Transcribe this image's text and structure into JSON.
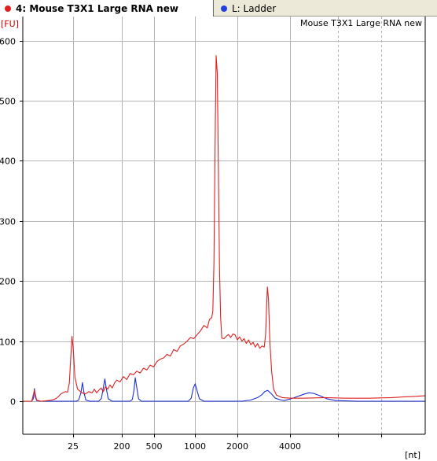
{
  "tabs": [
    {
      "label": "4: Mouse T3X1 Large RNA new",
      "dot_color": "#e02020",
      "active": true
    },
    {
      "label": "L: Ladder",
      "dot_color": "#2040e0",
      "active": false
    }
  ],
  "chart_data": {
    "type": "line",
    "title": "Mouse T3X1 Large RNA new",
    "ylabel": "[FU]",
    "xlabel": "[nt]",
    "x_tick_labels": [
      "25",
      "200",
      "500",
      "1000",
      "2000",
      "4000"
    ],
    "y_ticks": [
      0,
      100,
      200,
      300,
      400,
      500,
      600
    ],
    "ylim": [
      -55,
      640
    ],
    "grid": true,
    "series": [
      {
        "name": "Mouse T3X1 Large RNA new",
        "color": "#e02020",
        "points": [
          [
            20,
            0
          ],
          [
            24,
            0
          ],
          [
            25.2,
            18
          ],
          [
            26.2,
            2
          ],
          [
            28,
            0
          ],
          [
            30,
            0.5
          ],
          [
            31.5,
            1.2
          ],
          [
            33,
            2
          ],
          [
            34,
            3
          ],
          [
            35,
            5
          ],
          [
            36,
            8
          ],
          [
            37,
            12
          ],
          [
            38,
            14
          ],
          [
            39,
            16
          ],
          [
            40,
            15
          ],
          [
            40.8,
            30
          ],
          [
            41.4,
            70
          ],
          [
            42,
            108
          ],
          [
            42.6,
            85
          ],
          [
            43.3,
            40
          ],
          [
            44.5,
            20
          ],
          [
            46.5,
            14
          ],
          [
            48,
            12
          ],
          [
            49.5,
            16
          ],
          [
            51,
            14
          ],
          [
            52,
            20
          ],
          [
            53,
            14
          ],
          [
            54,
            18
          ],
          [
            55,
            22
          ],
          [
            56,
            16
          ],
          [
            57,
            24
          ],
          [
            58,
            20
          ],
          [
            59,
            27
          ],
          [
            60,
            22
          ],
          [
            61,
            30
          ],
          [
            62,
            35
          ],
          [
            63.5,
            32
          ],
          [
            65,
            41
          ],
          [
            66.5,
            36
          ],
          [
            68,
            46
          ],
          [
            69.5,
            44
          ],
          [
            71,
            50
          ],
          [
            72.5,
            47
          ],
          [
            74,
            55
          ],
          [
            75.5,
            52
          ],
          [
            77,
            60
          ],
          [
            78.5,
            57
          ],
          [
            80,
            66
          ],
          [
            81.5,
            70
          ],
          [
            83,
            72
          ],
          [
            84.5,
            78
          ],
          [
            86,
            75
          ],
          [
            87.5,
            86
          ],
          [
            89,
            83
          ],
          [
            90.5,
            92
          ],
          [
            92,
            95
          ],
          [
            93.5,
            100
          ],
          [
            95,
            106
          ],
          [
            96.5,
            104
          ],
          [
            98,
            111
          ],
          [
            99.5,
            117
          ],
          [
            101,
            126
          ],
          [
            102.5,
            122
          ],
          [
            103.5,
            136
          ],
          [
            104.5,
            139
          ],
          [
            105,
            150
          ],
          [
            105.5,
            230
          ],
          [
            106,
            420
          ],
          [
            106.5,
            575
          ],
          [
            107,
            545
          ],
          [
            107.5,
            380
          ],
          [
            108,
            220
          ],
          [
            108.5,
            140
          ],
          [
            109,
            105
          ],
          [
            110,
            104
          ],
          [
            111,
            108
          ],
          [
            112,
            111
          ],
          [
            113,
            106
          ],
          [
            114,
            112
          ],
          [
            115,
            110
          ],
          [
            116,
            102
          ],
          [
            117,
            107
          ],
          [
            118,
            100
          ],
          [
            119,
            104
          ],
          [
            120,
            96
          ],
          [
            121,
            102
          ],
          [
            122,
            94
          ],
          [
            123,
            98
          ],
          [
            124,
            90
          ],
          [
            125,
            96
          ],
          [
            126,
            88
          ],
          [
            127,
            92
          ],
          [
            128,
            90
          ],
          [
            128.6,
            110
          ],
          [
            129,
            150
          ],
          [
            129.4,
            190
          ],
          [
            129.9,
            170
          ],
          [
            130.5,
            100
          ],
          [
            131.3,
            50
          ],
          [
            132.2,
            20
          ],
          [
            133.5,
            10
          ],
          [
            136,
            6
          ],
          [
            140,
            5
          ],
          [
            145,
            5
          ],
          [
            155,
            6
          ],
          [
            165,
            5
          ],
          [
            175,
            5
          ],
          [
            185,
            6
          ],
          [
            190,
            7
          ],
          [
            195,
            8
          ],
          [
            200,
            9
          ]
        ]
      },
      {
        "name": "L: Ladder",
        "color": "#1a2ed6",
        "points": [
          [
            24,
            0
          ],
          [
            24.8,
            5
          ],
          [
            25.2,
            21
          ],
          [
            25.6,
            8
          ],
          [
            26.2,
            1
          ],
          [
            28,
            0
          ],
          [
            40,
            0
          ],
          [
            44,
            0
          ],
          [
            45,
            2
          ],
          [
            46,
            14
          ],
          [
            46.7,
            31
          ],
          [
            47.4,
            14
          ],
          [
            48.2,
            2
          ],
          [
            50,
            0
          ],
          [
            54,
            0
          ],
          [
            55.2,
            5
          ],
          [
            56,
            22
          ],
          [
            56.7,
            37
          ],
          [
            57.4,
            20
          ],
          [
            58.2,
            4
          ],
          [
            60,
            0
          ],
          [
            68,
            0
          ],
          [
            69,
            3
          ],
          [
            69.7,
            18
          ],
          [
            70.3,
            39
          ],
          [
            71,
            22
          ],
          [
            71.8,
            4
          ],
          [
            73,
            0
          ],
          [
            90,
            0
          ],
          [
            94,
            0
          ],
          [
            95.3,
            5
          ],
          [
            96.3,
            22
          ],
          [
            97.1,
            29
          ],
          [
            97.9,
            18
          ],
          [
            99,
            4
          ],
          [
            101,
            0
          ],
          [
            118,
            0
          ],
          [
            122,
            2
          ],
          [
            125,
            6
          ],
          [
            127,
            11
          ],
          [
            128.2,
            16
          ],
          [
            129.5,
            18
          ],
          [
            131,
            13
          ],
          [
            133,
            5
          ],
          [
            135.5,
            2
          ],
          [
            137,
            1
          ],
          [
            140,
            4
          ],
          [
            143,
            8
          ],
          [
            146,
            12
          ],
          [
            148,
            14
          ],
          [
            150,
            13
          ],
          [
            153,
            9
          ],
          [
            156,
            4
          ],
          [
            160,
            1
          ],
          [
            170,
            0
          ],
          [
            200,
            0
          ]
        ]
      }
    ]
  }
}
